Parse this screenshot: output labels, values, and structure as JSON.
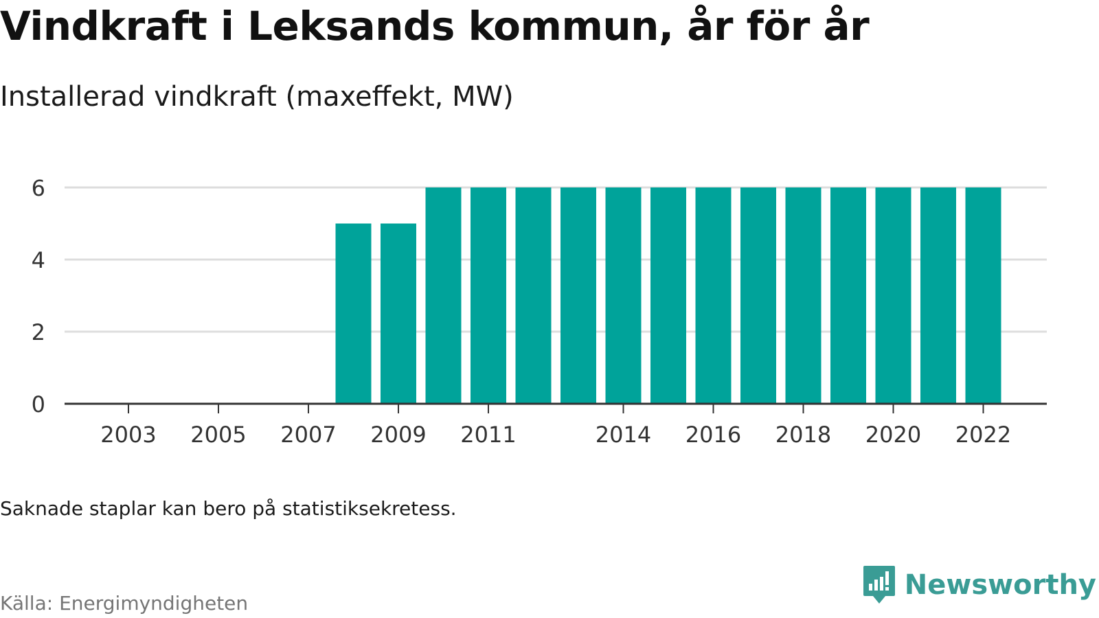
{
  "header": {
    "title": "Vindkraft i Leksands kommun, år för år",
    "subtitle": "Installerad vindkraft (maxeffekt, MW)"
  },
  "footer": {
    "note": "Saknade staplar kan bero på statistiksekretess.",
    "source": "Källa: Energimyndigheten",
    "brand": "Newsworthy"
  },
  "colors": {
    "bar": "#00a39a",
    "grid": "#dddddd",
    "axis": "#333333",
    "brand": "#3a9c95"
  },
  "chart_data": {
    "type": "bar",
    "categories": [
      "2003",
      "2004",
      "2005",
      "2006",
      "2007",
      "2008",
      "2009",
      "2010",
      "2011",
      "2012",
      "2013",
      "2014",
      "2015",
      "2016",
      "2017",
      "2018",
      "2019",
      "2020",
      "2021",
      "2022"
    ],
    "values": [
      0,
      0,
      0,
      0,
      0,
      5,
      5,
      6,
      6,
      6,
      6,
      6,
      6,
      6,
      6,
      6,
      6,
      6,
      6,
      6
    ],
    "xticks": [
      "2003",
      "2005",
      "2007",
      "2009",
      "2011",
      "2014",
      "2016",
      "2018",
      "2020",
      "2022"
    ],
    "yticks": [
      0,
      2,
      4,
      6
    ],
    "ylim": [
      0,
      6
    ],
    "title": "Vindkraft i Leksands kommun, år för år",
    "xlabel": "",
    "ylabel": "",
    "grid": true,
    "legend": "none"
  }
}
